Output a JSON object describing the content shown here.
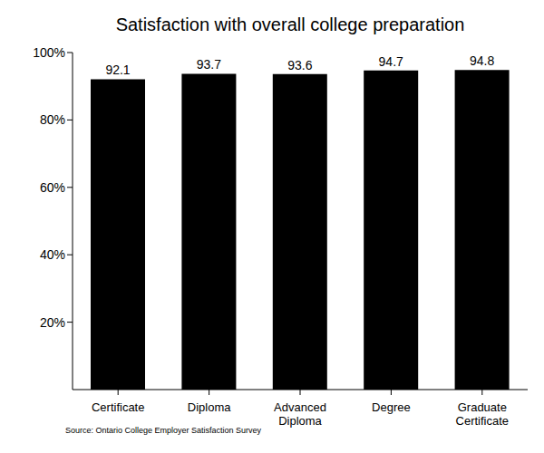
{
  "chart_data": {
    "type": "bar",
    "title": "Satisfaction with overall college preparation",
    "categories": [
      "Certificate",
      "Diploma",
      "Advanced Diploma",
      "Degree",
      "Graduate Certificate"
    ],
    "values": [
      92.1,
      93.7,
      93.6,
      94.7,
      94.8
    ],
    "color": "#000000",
    "ylim": [
      0,
      100
    ],
    "yticks": [
      {
        "value": 20,
        "label": "20%"
      },
      {
        "value": 40,
        "label": "40%"
      },
      {
        "value": 60,
        "label": "60%"
      },
      {
        "value": 80,
        "label": "80%"
      },
      {
        "value": 100,
        "label": "100%"
      }
    ],
    "data_labels": true,
    "grid": false,
    "source": "Source: Ontario College Employer Satisfaction Survey"
  }
}
